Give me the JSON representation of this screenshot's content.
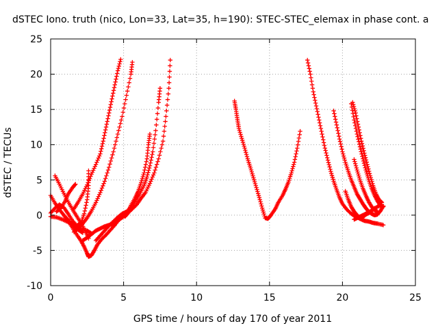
{
  "chart_data": {
    "type": "scatter",
    "title": "dSTEC Iono. truth (nico, Lon=33, Lat=35, h=190): STEC-STEC_elemax in phase cont. a",
    "xlabel": "GPS time / hours of day 170 of year 2011",
    "ylabel": "dSTEC  / TECUs",
    "xlim": [
      0,
      25
    ],
    "ylim": [
      -10,
      25
    ],
    "xticks": [
      "0",
      "5",
      "10",
      "15",
      "20",
      "25"
    ],
    "yticks": [
      "-10",
      "-5",
      "0",
      "5",
      "10",
      "15",
      "20",
      "25"
    ],
    "grid": true,
    "marker": "+",
    "color": "#ff0000",
    "series": [
      {
        "points": [
          [
            0.3,
            5.6
          ],
          [
            0.6,
            4.4
          ],
          [
            0.9,
            3.1
          ],
          [
            1.2,
            1.9
          ],
          [
            1.5,
            0.8
          ],
          [
            1.8,
            -0.2
          ],
          [
            2.1,
            -1.2
          ],
          [
            2.4,
            -2.3
          ],
          [
            2.6,
            -3.3
          ]
        ]
      },
      {
        "points": [
          [
            0.0,
            2.8
          ],
          [
            0.3,
            1.7
          ],
          [
            0.6,
            0.8
          ],
          [
            0.9,
            0.0
          ],
          [
            1.2,
            -0.7
          ],
          [
            1.5,
            -1.3
          ],
          [
            1.8,
            -1.7
          ],
          [
            2.1,
            -2.0
          ],
          [
            2.5,
            -2.2
          ],
          [
            2.8,
            -2.6
          ]
        ]
      },
      {
        "points": [
          [
            0.4,
            0.5
          ],
          [
            0.7,
            1.0
          ],
          [
            1.0,
            2.0
          ],
          [
            1.2,
            3.0
          ],
          [
            1.5,
            3.9
          ],
          [
            1.7,
            4.4
          ]
        ]
      },
      {
        "points": [
          [
            0.0,
            -0.2
          ],
          [
            0.4,
            -0.3
          ],
          [
            0.8,
            -0.6
          ],
          [
            1.2,
            -1.0
          ],
          [
            1.6,
            -1.6
          ],
          [
            1.9,
            -2.1
          ],
          [
            2.2,
            -2.5
          ]
        ]
      },
      {
        "points": [
          [
            0.0,
            0.3
          ],
          [
            0.3,
            1.0
          ],
          [
            0.6,
            1.5
          ],
          [
            0.9,
            1.1
          ],
          [
            1.2,
            0.2
          ],
          [
            1.5,
            -0.8
          ],
          [
            1.8,
            -1.5
          ],
          [
            2.1,
            -1.0
          ],
          [
            2.3,
            0.2
          ],
          [
            2.5,
            2.2
          ],
          [
            2.6,
            4.2
          ],
          [
            2.6,
            6.3
          ]
        ]
      },
      {
        "points": [
          [
            0.9,
            0.0
          ],
          [
            1.2,
            -0.8
          ],
          [
            1.5,
            -1.8
          ],
          [
            1.8,
            -2.8
          ],
          [
            2.1,
            -3.7
          ],
          [
            2.3,
            -4.5
          ],
          [
            2.5,
            -5.4
          ],
          [
            2.6,
            -5.9
          ],
          [
            2.8,
            -5.7
          ],
          [
            3.0,
            -5.0
          ],
          [
            3.2,
            -4.2
          ],
          [
            3.5,
            -3.4
          ],
          [
            3.8,
            -2.8
          ],
          [
            4.1,
            -2.1
          ],
          [
            4.4,
            -1.4
          ],
          [
            4.7,
            -0.6
          ],
          [
            5.0,
            -0.2
          ],
          [
            5.3,
            0.3
          ],
          [
            5.6,
            0.9
          ],
          [
            5.9,
            1.5
          ],
          [
            6.2,
            2.4
          ],
          [
            6.5,
            3.2
          ],
          [
            6.8,
            4.5
          ],
          [
            7.1,
            6.0
          ],
          [
            7.4,
            8.0
          ],
          [
            7.7,
            10.5
          ],
          [
            7.9,
            14.0
          ],
          [
            8.1,
            18.0
          ],
          [
            8.2,
            22.0
          ]
        ]
      },
      {
        "points": [
          [
            2.2,
            -3.6
          ],
          [
            2.5,
            -3.2
          ],
          [
            2.8,
            -2.7
          ],
          [
            3.1,
            -2.2
          ],
          [
            3.4,
            -1.9
          ],
          [
            3.7,
            -1.6
          ],
          [
            4.0,
            -1.4
          ],
          [
            4.3,
            -1.2
          ],
          [
            4.6,
            -0.8
          ],
          [
            4.9,
            -0.3
          ],
          [
            5.2,
            0.4
          ],
          [
            5.5,
            1.2
          ],
          [
            5.8,
            2.0
          ],
          [
            6.1,
            3.0
          ],
          [
            6.4,
            4.2
          ],
          [
            6.6,
            5.4
          ],
          [
            6.8,
            7.0
          ],
          [
            7.0,
            9.0
          ],
          [
            7.2,
            12.0
          ],
          [
            7.4,
            16.0
          ],
          [
            7.5,
            18.0
          ]
        ]
      },
      {
        "points": [
          [
            1.6,
            -2.4
          ],
          [
            1.9,
            -1.9
          ],
          [
            2.2,
            -1.2
          ],
          [
            2.5,
            -0.4
          ],
          [
            2.8,
            0.6
          ],
          [
            3.1,
            1.8
          ],
          [
            3.4,
            3.2
          ],
          [
            3.7,
            4.8
          ],
          [
            4.0,
            6.8
          ],
          [
            4.3,
            9.0
          ],
          [
            4.6,
            11.5
          ],
          [
            4.9,
            14.0
          ],
          [
            5.2,
            17.0
          ],
          [
            5.5,
            20.0
          ],
          [
            5.6,
            21.7
          ]
        ]
      },
      {
        "points": [
          [
            1.6,
            0.9
          ],
          [
            1.9,
            1.9
          ],
          [
            2.2,
            3.0
          ],
          [
            2.5,
            4.3
          ],
          [
            2.8,
            5.8
          ],
          [
            3.1,
            7.2
          ],
          [
            3.4,
            8.7
          ],
          [
            3.6,
            10.5
          ],
          [
            3.8,
            12.5
          ],
          [
            4.0,
            14.5
          ],
          [
            4.2,
            16.5
          ],
          [
            4.4,
            18.5
          ],
          [
            4.6,
            20.5
          ],
          [
            4.8,
            22.1
          ]
        ]
      },
      {
        "points": [
          [
            5.1,
            -0.2
          ],
          [
            5.3,
            0.3
          ],
          [
            5.5,
            1.4
          ],
          [
            5.8,
            2.5
          ],
          [
            6.0,
            3.4
          ],
          [
            6.2,
            4.6
          ],
          [
            6.4,
            6.0
          ],
          [
            6.6,
            8.0
          ],
          [
            6.7,
            10.0
          ],
          [
            6.8,
            11.5
          ]
        ]
      },
      {
        "points": [
          [
            3.1,
            -3.6
          ],
          [
            3.4,
            -2.9
          ],
          [
            3.7,
            -2.2
          ],
          [
            4.0,
            -1.5
          ],
          [
            4.3,
            -0.9
          ],
          [
            4.6,
            -0.3
          ],
          [
            4.9,
            0.2
          ],
          [
            5.2,
            0.5
          ]
        ]
      },
      {
        "points": [
          [
            12.6,
            16.2
          ],
          [
            12.7,
            15.0
          ],
          [
            12.8,
            13.6
          ],
          [
            12.9,
            12.3
          ],
          [
            13.1,
            10.9
          ],
          [
            13.3,
            9.5
          ],
          [
            13.5,
            8.0
          ],
          [
            13.7,
            6.7
          ],
          [
            13.9,
            5.3
          ],
          [
            14.1,
            3.9
          ],
          [
            14.3,
            2.5
          ],
          [
            14.5,
            1.0
          ],
          [
            14.7,
            -0.4
          ],
          [
            14.9,
            -0.5
          ],
          [
            15.1,
            0.0
          ],
          [
            15.4,
            0.9
          ],
          [
            15.6,
            1.8
          ],
          [
            15.9,
            2.8
          ],
          [
            16.1,
            3.7
          ],
          [
            16.3,
            4.7
          ],
          [
            16.5,
            6.0
          ],
          [
            16.7,
            7.5
          ],
          [
            16.9,
            9.5
          ],
          [
            17.1,
            11.9
          ]
        ]
      },
      {
        "points": [
          [
            17.6,
            22.0
          ],
          [
            17.8,
            20.0
          ],
          [
            18.0,
            17.5
          ],
          [
            18.2,
            15.5
          ],
          [
            18.4,
            13.5
          ],
          [
            18.6,
            11.5
          ],
          [
            18.8,
            9.5
          ],
          [
            19.0,
            7.8
          ],
          [
            19.2,
            6.2
          ],
          [
            19.4,
            4.8
          ],
          [
            19.6,
            3.6
          ],
          [
            19.8,
            2.5
          ],
          [
            20.0,
            1.6
          ],
          [
            20.3,
            0.8
          ],
          [
            20.6,
            0.2
          ],
          [
            20.9,
            -0.2
          ],
          [
            21.2,
            -0.5
          ],
          [
            21.5,
            -0.8
          ],
          [
            21.8,
            -0.9
          ],
          [
            22.1,
            -1.1
          ],
          [
            22.4,
            -1.2
          ],
          [
            22.8,
            -1.4
          ]
        ]
      },
      {
        "points": [
          [
            19.4,
            14.8
          ],
          [
            19.6,
            12.8
          ],
          [
            19.8,
            10.8
          ],
          [
            20.0,
            9.0
          ],
          [
            20.2,
            7.5
          ],
          [
            20.4,
            6.2
          ],
          [
            20.6,
            5.0
          ],
          [
            20.8,
            4.0
          ],
          [
            21.0,
            3.0
          ],
          [
            21.2,
            2.3
          ],
          [
            21.4,
            1.6
          ],
          [
            21.6,
            1.0
          ],
          [
            21.8,
            0.5
          ],
          [
            22.0,
            0.2
          ],
          [
            22.2,
            0.0
          ],
          [
            22.4,
            0.1
          ],
          [
            22.6,
            0.6
          ],
          [
            22.8,
            1.3
          ]
        ]
      },
      {
        "points": [
          [
            20.7,
            16.0
          ],
          [
            20.9,
            14.5
          ],
          [
            21.1,
            12.5
          ],
          [
            21.3,
            10.5
          ],
          [
            21.5,
            8.8
          ],
          [
            21.7,
            7.2
          ],
          [
            21.9,
            5.6
          ],
          [
            22.1,
            4.2
          ],
          [
            22.3,
            3.0
          ],
          [
            22.5,
            2.2
          ],
          [
            22.7,
            1.8
          ]
        ]
      },
      {
        "points": [
          [
            20.6,
            15.8
          ],
          [
            20.8,
            13.5
          ],
          [
            21.0,
            11.5
          ],
          [
            21.2,
            9.7
          ],
          [
            21.4,
            8.0
          ],
          [
            21.6,
            6.4
          ],
          [
            21.8,
            5.0
          ],
          [
            22.0,
            3.8
          ],
          [
            22.2,
            2.8
          ],
          [
            22.4,
            2.0
          ],
          [
            22.6,
            1.4
          ],
          [
            22.8,
            1.2
          ]
        ]
      },
      {
        "points": [
          [
            20.8,
            7.9
          ],
          [
            21.0,
            6.4
          ],
          [
            21.2,
            5.0
          ],
          [
            21.4,
            3.8
          ],
          [
            21.6,
            2.8
          ],
          [
            21.8,
            1.9
          ],
          [
            22.0,
            1.2
          ],
          [
            22.2,
            0.7
          ],
          [
            22.4,
            0.5
          ]
        ]
      },
      {
        "points": [
          [
            20.2,
            3.4
          ],
          [
            20.4,
            2.2
          ],
          [
            20.6,
            1.2
          ],
          [
            20.8,
            0.5
          ],
          [
            21.0,
            0.0
          ],
          [
            21.2,
            -0.5
          ],
          [
            21.4,
            -0.3
          ],
          [
            21.6,
            0.1
          ],
          [
            21.8,
            0.3
          ],
          [
            22.0,
            0.6
          ],
          [
            22.2,
            1.0
          ]
        ]
      },
      {
        "points": [
          [
            20.8,
            -0.6
          ],
          [
            21.0,
            -0.4
          ],
          [
            21.2,
            -0.2
          ],
          [
            21.5,
            0.1
          ],
          [
            21.8,
            0.4
          ],
          [
            22.1,
            0.8
          ],
          [
            22.4,
            1.2
          ],
          [
            22.7,
            1.5
          ]
        ]
      }
    ]
  }
}
